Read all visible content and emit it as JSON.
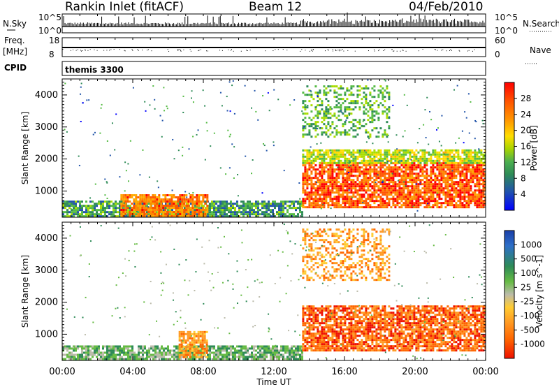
{
  "header": {
    "station": "Rankin Inlet (fitACF)",
    "beam": "Beam 12",
    "date": "04/Feb/2010"
  },
  "top_panels": {
    "nsky_label": "N.Sky",
    "nsky_ticks": [
      "10^5",
      "10^0"
    ],
    "nsearch_label": "N.Search",
    "nsearch_ticks": [
      "10^5",
      "10^0"
    ],
    "freq_label": "Freq.",
    "freq_unit": "[MHz]",
    "freq_ticks": [
      "18",
      "8"
    ],
    "nave_label": "Nave",
    "nave_ticks": [
      "60",
      "0"
    ],
    "cpid_label": "CPID",
    "cpid_value": "themis 3300"
  },
  "chart_data": [
    {
      "type": "heatmap",
      "name": "power",
      "ylabel": "Slant Range [km]",
      "ylim": [
        180,
        4500
      ],
      "yticks": [
        1000,
        2000,
        3000,
        4000
      ],
      "xlabel": "",
      "xlim_hours": [
        0,
        24
      ],
      "xticks": [
        "00:00",
        "04:00",
        "08:00",
        "12:00",
        "16:00",
        "20:00",
        "00:00"
      ],
      "colorbar": {
        "label": "Power [dB]",
        "ticks": [
          "28",
          "24",
          "20",
          "16",
          "12",
          "8",
          "4"
        ],
        "colors": [
          "#ff0000",
          "#ff5500",
          "#ff8800",
          "#ffaa00",
          "#ffdd00",
          "#aadd00",
          "#55bb44",
          "#2e8b57",
          "#2255aa",
          "#0000ff"
        ]
      },
      "regions": [
        {
          "hours": [
            0.0,
            13.6
          ],
          "range_km": [
            180,
            700
          ],
          "level_db": 8
        },
        {
          "hours": [
            3.3,
            8.2
          ],
          "range_km": [
            180,
            900
          ],
          "level_db": 24
        },
        {
          "hours": [
            13.6,
            24.0
          ],
          "range_km": [
            500,
            1900
          ],
          "level_db": 26
        },
        {
          "hours": [
            13.6,
            24.0
          ],
          "range_km": [
            1900,
            2300
          ],
          "level_db": 14
        },
        {
          "hours": [
            13.6,
            18.5
          ],
          "range_km": [
            2700,
            4300
          ],
          "level_db": 10
        }
      ]
    },
    {
      "type": "heatmap",
      "name": "velocity",
      "ylabel": "Slant Range [km]",
      "ylim": [
        180,
        4500
      ],
      "yticks": [
        1000,
        2000,
        3000,
        4000
      ],
      "xlabel": "Time UT",
      "xlim_hours": [
        0,
        24
      ],
      "xticks": [
        "00:00",
        "04:00",
        "08:00",
        "12:00",
        "16:00",
        "20:00",
        "00:00"
      ],
      "colorbar": {
        "label": "Velocity [m s^-1]",
        "ticks": [
          "1000",
          "500",
          "100",
          "25",
          "-25",
          "-100",
          "-500",
          "-1000"
        ],
        "colors": [
          "#1a3fa8",
          "#2e6fc8",
          "#2e8b57",
          "#66bb44",
          "#bbbbaa",
          "#ffcc33",
          "#ff9922",
          "#ff6600",
          "#ee1100"
        ]
      },
      "regions": [
        {
          "hours": [
            0.0,
            13.6
          ],
          "range_km": [
            180,
            650
          ],
          "velocity": 40
        },
        {
          "hours": [
            6.6,
            8.2
          ],
          "range_km": [
            300,
            1100
          ],
          "velocity": -120
        },
        {
          "hours": [
            13.6,
            24.0
          ],
          "range_km": [
            500,
            1900
          ],
          "velocity": -350
        },
        {
          "hours": [
            13.6,
            18.5
          ],
          "range_km": [
            2700,
            4300
          ],
          "velocity": -150
        }
      ]
    }
  ]
}
